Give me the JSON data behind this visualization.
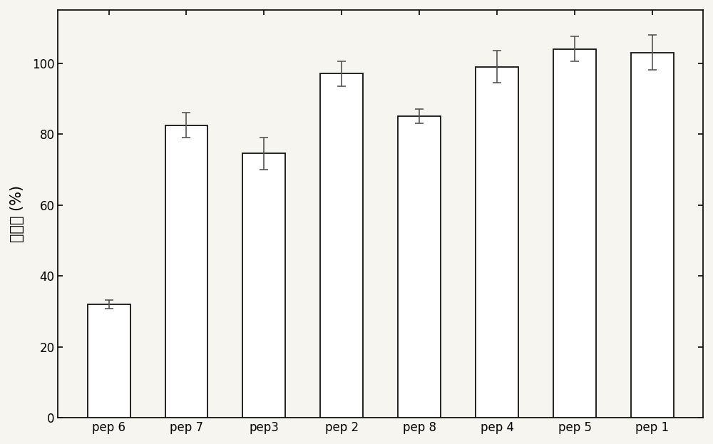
{
  "categories": [
    "pep 6",
    "pep 7",
    "pep3",
    "pep 2",
    "pep 8",
    "pep 4",
    "pep 5",
    "pep 1"
  ],
  "values": [
    32.0,
    82.5,
    74.5,
    97.0,
    85.0,
    99.0,
    104.0,
    103.0
  ],
  "errors": [
    1.2,
    3.5,
    4.5,
    3.5,
    2.0,
    4.5,
    3.5,
    5.0
  ],
  "bar_color": "#ffffff",
  "bar_edgecolor": "#111111",
  "error_color": "#555555",
  "ylabel": "回收率 (%)",
  "ylim": [
    0,
    115
  ],
  "yticks": [
    0,
    20,
    40,
    60,
    80,
    100
  ],
  "background_color": "#f7f5f0",
  "bar_width": 0.55,
  "linewidth": 1.3,
  "ylabel_fontsize": 15,
  "tick_fontsize": 12
}
